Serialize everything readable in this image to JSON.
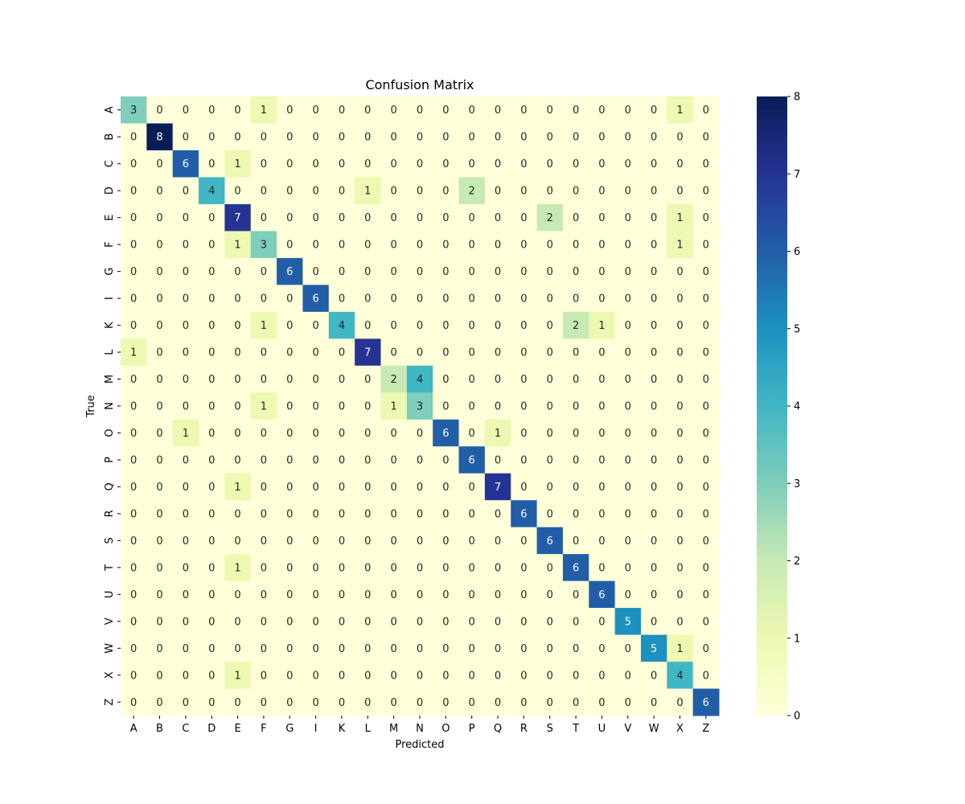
{
  "chart_data": {
    "type": "heatmap",
    "title": "Confusion Matrix",
    "xlabel": "Predicted",
    "ylabel": "True",
    "x_categories": [
      "A",
      "B",
      "C",
      "D",
      "E",
      "F",
      "G",
      "I",
      "K",
      "L",
      "M",
      "N",
      "O",
      "P",
      "Q",
      "R",
      "S",
      "T",
      "U",
      "V",
      "W",
      "X",
      "Z"
    ],
    "y_categories": [
      "A",
      "B",
      "C",
      "D",
      "E",
      "F",
      "G",
      "I",
      "K",
      "L",
      "M",
      "N",
      "O",
      "P",
      "Q",
      "R",
      "S",
      "T",
      "U",
      "V",
      "W",
      "X",
      "Z"
    ],
    "values": [
      [
        3,
        0,
        0,
        0,
        0,
        1,
        0,
        0,
        0,
        0,
        0,
        0,
        0,
        0,
        0,
        0,
        0,
        0,
        0,
        0,
        0,
        1,
        0
      ],
      [
        0,
        8,
        0,
        0,
        0,
        0,
        0,
        0,
        0,
        0,
        0,
        0,
        0,
        0,
        0,
        0,
        0,
        0,
        0,
        0,
        0,
        0,
        0
      ],
      [
        0,
        0,
        6,
        0,
        1,
        0,
        0,
        0,
        0,
        0,
        0,
        0,
        0,
        0,
        0,
        0,
        0,
        0,
        0,
        0,
        0,
        0,
        0
      ],
      [
        0,
        0,
        0,
        4,
        0,
        0,
        0,
        0,
        0,
        1,
        0,
        0,
        0,
        2,
        0,
        0,
        0,
        0,
        0,
        0,
        0,
        0,
        0
      ],
      [
        0,
        0,
        0,
        0,
        7,
        0,
        0,
        0,
        0,
        0,
        0,
        0,
        0,
        0,
        0,
        0,
        2,
        0,
        0,
        0,
        0,
        1,
        0
      ],
      [
        0,
        0,
        0,
        0,
        1,
        3,
        0,
        0,
        0,
        0,
        0,
        0,
        0,
        0,
        0,
        0,
        0,
        0,
        0,
        0,
        0,
        1,
        0
      ],
      [
        0,
        0,
        0,
        0,
        0,
        0,
        6,
        0,
        0,
        0,
        0,
        0,
        0,
        0,
        0,
        0,
        0,
        0,
        0,
        0,
        0,
        0,
        0
      ],
      [
        0,
        0,
        0,
        0,
        0,
        0,
        0,
        6,
        0,
        0,
        0,
        0,
        0,
        0,
        0,
        0,
        0,
        0,
        0,
        0,
        0,
        0,
        0
      ],
      [
        0,
        0,
        0,
        0,
        0,
        1,
        0,
        0,
        4,
        0,
        0,
        0,
        0,
        0,
        0,
        0,
        0,
        2,
        1,
        0,
        0,
        0,
        0
      ],
      [
        1,
        0,
        0,
        0,
        0,
        0,
        0,
        0,
        0,
        7,
        0,
        0,
        0,
        0,
        0,
        0,
        0,
        0,
        0,
        0,
        0,
        0,
        0
      ],
      [
        0,
        0,
        0,
        0,
        0,
        0,
        0,
        0,
        0,
        0,
        2,
        4,
        0,
        0,
        0,
        0,
        0,
        0,
        0,
        0,
        0,
        0,
        0
      ],
      [
        0,
        0,
        0,
        0,
        0,
        1,
        0,
        0,
        0,
        0,
        1,
        3,
        0,
        0,
        0,
        0,
        0,
        0,
        0,
        0,
        0,
        0,
        0
      ],
      [
        0,
        0,
        1,
        0,
        0,
        0,
        0,
        0,
        0,
        0,
        0,
        0,
        6,
        0,
        1,
        0,
        0,
        0,
        0,
        0,
        0,
        0,
        0
      ],
      [
        0,
        0,
        0,
        0,
        0,
        0,
        0,
        0,
        0,
        0,
        0,
        0,
        0,
        6,
        0,
        0,
        0,
        0,
        0,
        0,
        0,
        0,
        0
      ],
      [
        0,
        0,
        0,
        0,
        1,
        0,
        0,
        0,
        0,
        0,
        0,
        0,
        0,
        0,
        7,
        0,
        0,
        0,
        0,
        0,
        0,
        0,
        0
      ],
      [
        0,
        0,
        0,
        0,
        0,
        0,
        0,
        0,
        0,
        0,
        0,
        0,
        0,
        0,
        0,
        6,
        0,
        0,
        0,
        0,
        0,
        0,
        0
      ],
      [
        0,
        0,
        0,
        0,
        0,
        0,
        0,
        0,
        0,
        0,
        0,
        0,
        0,
        0,
        0,
        0,
        6,
        0,
        0,
        0,
        0,
        0,
        0
      ],
      [
        0,
        0,
        0,
        0,
        1,
        0,
        0,
        0,
        0,
        0,
        0,
        0,
        0,
        0,
        0,
        0,
        0,
        6,
        0,
        0,
        0,
        0,
        0
      ],
      [
        0,
        0,
        0,
        0,
        0,
        0,
        0,
        0,
        0,
        0,
        0,
        0,
        0,
        0,
        0,
        0,
        0,
        0,
        6,
        0,
        0,
        0,
        0
      ],
      [
        0,
        0,
        0,
        0,
        0,
        0,
        0,
        0,
        0,
        0,
        0,
        0,
        0,
        0,
        0,
        0,
        0,
        0,
        0,
        5,
        0,
        0,
        0
      ],
      [
        0,
        0,
        0,
        0,
        0,
        0,
        0,
        0,
        0,
        0,
        0,
        0,
        0,
        0,
        0,
        0,
        0,
        0,
        0,
        0,
        5,
        1,
        0
      ],
      [
        0,
        0,
        0,
        0,
        1,
        0,
        0,
        0,
        0,
        0,
        0,
        0,
        0,
        0,
        0,
        0,
        0,
        0,
        0,
        0,
        0,
        4,
        0
      ],
      [
        0,
        0,
        0,
        0,
        0,
        0,
        0,
        0,
        0,
        0,
        0,
        0,
        0,
        0,
        0,
        0,
        0,
        0,
        0,
        0,
        0,
        0,
        6
      ]
    ],
    "vmin": 0,
    "vmax": 8,
    "colorbar_ticks": [
      0,
      1,
      2,
      3,
      4,
      5,
      6,
      7,
      8
    ],
    "colormap": "YlGnBu",
    "colormap_stops": [
      "#ffffd9",
      "#edf8b1",
      "#c7e9b4",
      "#7fcdbb",
      "#41b6c4",
      "#1d91c0",
      "#225ea8",
      "#253494",
      "#081d58"
    ],
    "grid": false
  }
}
